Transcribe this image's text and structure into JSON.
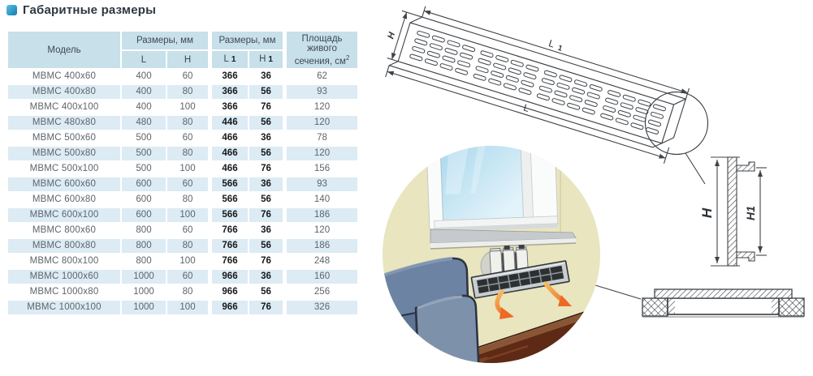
{
  "title": "Габаритные размеры",
  "table": {
    "header": {
      "model": "Модель",
      "group1": "Размеры, мм",
      "group2": "Размеры, мм",
      "area_line1": "Площадь живого",
      "area_line2": "сечения, см",
      "area_sup": "2",
      "l": "L",
      "h": "H",
      "l1": "L",
      "l1_idx": "1",
      "h1": "H",
      "h1_idx": "1"
    },
    "rows": [
      {
        "model": "МВМС 400x60",
        "l": "400",
        "h": "60",
        "l1": "366",
        "h1": "36",
        "area": "62"
      },
      {
        "model": "МВМС 400x80",
        "l": "400",
        "h": "80",
        "l1": "366",
        "h1": "56",
        "area": "93"
      },
      {
        "model": "МВМС 400x100",
        "l": "400",
        "h": "100",
        "l1": "366",
        "h1": "76",
        "area": "120"
      },
      {
        "model": "МВМС 480x80",
        "l": "480",
        "h": "80",
        "l1": "446",
        "h1": "56",
        "area": "120"
      },
      {
        "model": "МВМС 500x60",
        "l": "500",
        "h": "60",
        "l1": "466",
        "h1": "36",
        "area": "78"
      },
      {
        "model": "МВМС 500x80",
        "l": "500",
        "h": "80",
        "l1": "466",
        "h1": "56",
        "area": "120"
      },
      {
        "model": "МВМС 500x100",
        "l": "500",
        "h": "100",
        "l1": "466",
        "h1": "76",
        "area": "156"
      },
      {
        "model": "МВМС 600x60",
        "l": "600",
        "h": "60",
        "l1": "566",
        "h1": "36",
        "area": "93"
      },
      {
        "model": "МВМС 600x80",
        "l": "600",
        "h": "80",
        "l1": "566",
        "h1": "56",
        "area": "140"
      },
      {
        "model": "МВМС 600x100",
        "l": "600",
        "h": "100",
        "l1": "566",
        "h1": "76",
        "area": "186"
      },
      {
        "model": "МВМС 800x60",
        "l": "800",
        "h": "60",
        "l1": "766",
        "h1": "36",
        "area": "120"
      },
      {
        "model": "МВМС 800x80",
        "l": "800",
        "h": "80",
        "l1": "766",
        "h1": "56",
        "area": "186"
      },
      {
        "model": "МВМС 800x100",
        "l": "800",
        "h": "100",
        "l1": "766",
        "h1": "76",
        "area": "248"
      },
      {
        "model": "МВМС 1000x60",
        "l": "1000",
        "h": "60",
        "l1": "966",
        "h1": "36",
        "area": "160"
      },
      {
        "model": "МВМС 1000x80",
        "l": "1000",
        "h": "80",
        "l1": "966",
        "h1": "56",
        "area": "256"
      },
      {
        "model": "МВМС 1000x100",
        "l": "1000",
        "h": "100",
        "l1": "966",
        "h1": "76",
        "area": "326"
      }
    ]
  },
  "diagram": {
    "iso": {
      "h": "H",
      "l": "L",
      "l1": "L",
      "l1_idx": "1"
    },
    "profile": {
      "h": "H",
      "h1": "H1"
    }
  },
  "colors": {
    "header_blue": "#c7e0ea",
    "stripe_blue": "#dcebf4",
    "arrow_orange": "#ee6f28",
    "wall": "#e8e5bf",
    "sofa_blue": "#6d83a3"
  }
}
